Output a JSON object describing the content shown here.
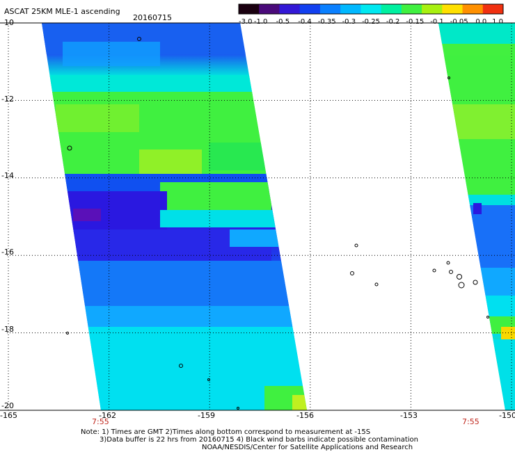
{
  "header": {
    "title": "ASCAT 25KM MLE-1 ascending",
    "date": "20160715"
  },
  "colorbar": {
    "tick_labels": [
      "-3.0",
      "-1.0",
      "-0.5",
      "-0.4",
      "-0.35",
      "-0.3",
      "-0.25",
      "-0.2",
      "-0.15",
      "-0.1",
      "-0.05",
      "0.0",
      "1.0"
    ],
    "colors": [
      "#1a0010",
      "#4a0a7a",
      "#3318d6",
      "#1240f0",
      "#0a80ff",
      "#00b8ff",
      "#00e8f0",
      "#00f0a0",
      "#40f040",
      "#a8f010",
      "#ffe000",
      "#ff9000",
      "#f03010"
    ]
  },
  "map": {
    "lat_labels": [
      "-10",
      "-12",
      "-14",
      "-16",
      "-18",
      "-20"
    ],
    "lon_labels": [
      "-165",
      "-162",
      "-159",
      "-156",
      "-153",
      "-150"
    ],
    "grid": "dotted",
    "swath_times": [
      "7:55",
      "7:55"
    ],
    "swath_colors": {
      "deep_blue": "#2a10dc",
      "blue": "#1050f0",
      "mid_blue": "#1878ff",
      "sky": "#14a8ff",
      "cyan": "#00e4f8",
      "aqua": "#00f0c8",
      "green": "#38f048",
      "light_green": "#88f028",
      "violet": "#5a10b8",
      "yellow": "#f8d800"
    }
  },
  "footer": {
    "line1": "Note: 1) Times are GMT 2)Times along bottom correspond to measurement at -15S",
    "line2": "3)Data buffer is 22 hrs from 20160715 4) Black wind barbs indicate possible contamination",
    "line3": "NOAA/NESDIS/Center for Satellite Applications and Research"
  }
}
